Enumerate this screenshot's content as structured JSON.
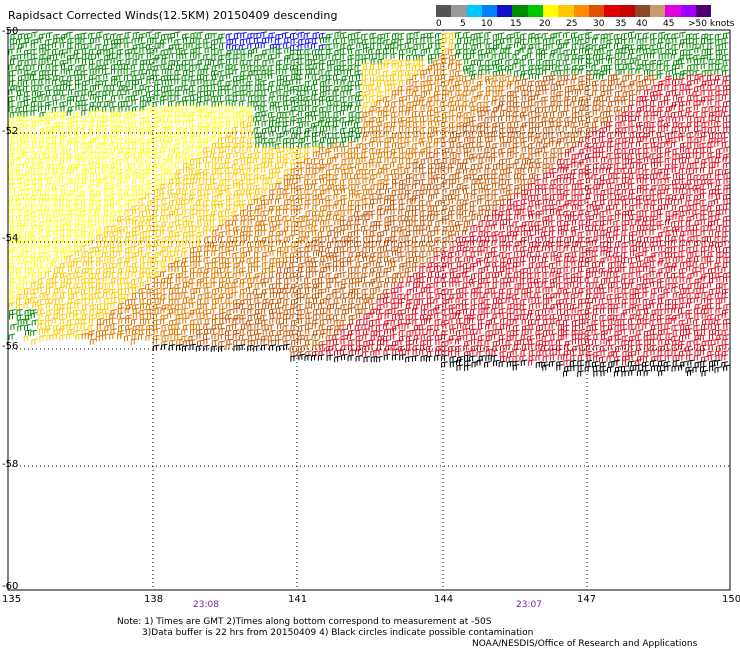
{
  "title": "Rapidsact Corrected Winds(12.5KM) 20150409 descending",
  "legend": {
    "colors": [
      "#555555",
      "#999999",
      "#00c8ff",
      "#0080ff",
      "#1010c8",
      "#008c00",
      "#00c800",
      "#ffff00",
      "#ffc800",
      "#ff8c00",
      "#e05000",
      "#e00000",
      "#c80000",
      "#8c4b28",
      "#c89b6e",
      "#e000e0",
      "#a000ff",
      "#500070"
    ],
    "labels": [
      "0",
      "5",
      "10",
      "15",
      "20",
      "25",
      "30",
      "35",
      "40",
      "45",
      ">50 knots"
    ]
  },
  "axes": {
    "lat_labels": [
      "-50",
      "-52",
      "-54",
      "-56",
      "-58",
      "-60"
    ],
    "lon_labels": [
      "135",
      "138",
      "141",
      "144",
      "147",
      "150"
    ]
  },
  "time_labels": [
    "23:08",
    "23:07"
  ],
  "notes": [
    "Note: 1) Times are GMT 2)Times along bottom correspond to measurement at -50S",
    "3)Data buffer is 22 hrs from 20150409 4) Black circles indicate possible contamination",
    "NOAA/NESDIS/Office of Research and Applications"
  ],
  "wind_colors": {
    "green": "#0a8a0a",
    "yellow": "#ffff1e",
    "gold": "#ffcc00",
    "orange": "#e07800",
    "darkorange": "#c85a0a",
    "red": "#e01020",
    "black": "#000000",
    "blue": "#1010ff"
  }
}
